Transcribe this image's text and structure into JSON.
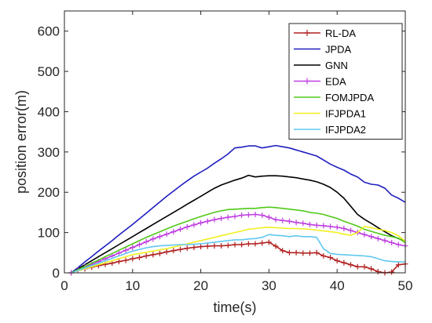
{
  "chart_data": {
    "type": "line",
    "xlabel": "time(s)",
    "ylabel": "position error(m)",
    "xlim": [
      0,
      50
    ],
    "ylim": [
      0,
      650
    ],
    "xticks": [
      0,
      10,
      20,
      30,
      40,
      50
    ],
    "yticks": [
      0,
      100,
      200,
      300,
      400,
      500,
      600
    ],
    "grid": false,
    "legend_position": "top-right",
    "series": [
      {
        "name": "RL-DA",
        "color": "#b22222",
        "marker": "plus",
        "x": [
          1,
          2,
          3,
          4,
          5,
          6,
          7,
          8,
          9,
          10,
          11,
          12,
          13,
          14,
          15,
          16,
          17,
          18,
          19,
          20,
          21,
          22,
          23,
          24,
          25,
          26,
          27,
          28,
          29,
          30,
          31,
          32,
          33,
          34,
          35,
          36,
          37,
          38,
          39,
          40,
          41,
          42,
          43,
          44,
          45,
          46,
          47,
          48,
          49,
          50
        ],
        "y": [
          0,
          6,
          10,
          14,
          18,
          21,
          24,
          28,
          31,
          35,
          38,
          42,
          45,
          48,
          52,
          55,
          58,
          61,
          63,
          65,
          66,
          67,
          67,
          68,
          70,
          70,
          72,
          72,
          74,
          76,
          66,
          55,
          50,
          50,
          49,
          49,
          50,
          42,
          38,
          30,
          25,
          20,
          15,
          15,
          10,
          3,
          0,
          2,
          20,
          22
        ]
      },
      {
        "name": "JPDA",
        "color": "#1f1fbf",
        "x": [
          1,
          2,
          3,
          4,
          5,
          6,
          7,
          8,
          9,
          10,
          11,
          12,
          13,
          14,
          15,
          16,
          17,
          18,
          19,
          20,
          21,
          22,
          23,
          24,
          25,
          26,
          27,
          28,
          29,
          30,
          31,
          32,
          33,
          34,
          35,
          36,
          37,
          38,
          39,
          40,
          41,
          42,
          43,
          44,
          45,
          46,
          47,
          48,
          49,
          50
        ],
        "y": [
          0,
          13,
          27,
          40,
          54,
          67,
          80,
          94,
          107,
          120,
          134,
          148,
          162,
          176,
          190,
          203,
          216,
          228,
          240,
          250,
          260,
          272,
          283,
          295,
          310,
          312,
          315,
          315,
          310,
          313,
          316,
          313,
          310,
          305,
          300,
          295,
          290,
          280,
          270,
          262,
          255,
          245,
          238,
          225,
          220,
          218,
          210,
          193,
          185,
          175
        ]
      },
      {
        "name": "GNN",
        "color": "#000000",
        "x": [
          1,
          2,
          3,
          4,
          5,
          6,
          7,
          8,
          9,
          10,
          11,
          12,
          13,
          14,
          15,
          16,
          17,
          18,
          19,
          20,
          21,
          22,
          23,
          24,
          25,
          26,
          27,
          28,
          29,
          30,
          31,
          32,
          33,
          34,
          35,
          36,
          37,
          38,
          39,
          40,
          41,
          42,
          43,
          44,
          45,
          46,
          47,
          48,
          49,
          50
        ],
        "y": [
          0,
          10,
          20,
          30,
          40,
          50,
          60,
          70,
          80,
          90,
          100,
          110,
          120,
          130,
          140,
          150,
          160,
          170,
          180,
          190,
          200,
          210,
          218,
          224,
          230,
          235,
          242,
          238,
          240,
          241,
          241,
          240,
          238,
          236,
          233,
          230,
          226,
          220,
          212,
          200,
          185,
          165,
          145,
          133,
          123,
          112,
          102,
          92,
          85,
          78
        ]
      },
      {
        "name": "EDA",
        "color": "#c040e0",
        "marker": "plus",
        "x": [
          1,
          2,
          3,
          4,
          5,
          6,
          7,
          8,
          9,
          10,
          11,
          12,
          13,
          14,
          15,
          16,
          17,
          18,
          19,
          20,
          21,
          22,
          23,
          24,
          25,
          26,
          27,
          28,
          29,
          30,
          31,
          32,
          33,
          34,
          35,
          36,
          37,
          38,
          39,
          40,
          41,
          42,
          43,
          44,
          45,
          46,
          47,
          48,
          49,
          50
        ],
        "y": [
          0,
          7,
          14,
          21,
          28,
          35,
          42,
          49,
          56,
          63,
          70,
          77,
          84,
          90,
          96,
          102,
          108,
          114,
          119,
          124,
          128,
          132,
          135,
          138,
          140,
          143,
          144,
          145,
          143,
          138,
          132,
          130,
          128,
          125,
          123,
          120,
          118,
          117,
          115,
          113,
          110,
          105,
          100,
          95,
          90,
          85,
          80,
          75,
          70,
          67
        ]
      },
      {
        "name": "FOMJPDA",
        "color": "#50c818",
        "x": [
          1,
          2,
          3,
          4,
          5,
          6,
          7,
          8,
          9,
          10,
          11,
          12,
          13,
          14,
          15,
          16,
          17,
          18,
          19,
          20,
          21,
          22,
          23,
          24,
          25,
          26,
          27,
          28,
          29,
          30,
          31,
          32,
          33,
          34,
          35,
          36,
          37,
          38,
          39,
          40,
          41,
          42,
          43,
          44,
          45,
          46,
          47,
          48,
          49,
          50
        ],
        "y": [
          0,
          8,
          16,
          24,
          32,
          40,
          48,
          56,
          64,
          72,
          80,
          88,
          95,
          102,
          109,
          116,
          122,
          128,
          134,
          140,
          145,
          150,
          154,
          157,
          158,
          159,
          160,
          160,
          162,
          163,
          162,
          160,
          158,
          156,
          154,
          150,
          148,
          145,
          140,
          135,
          128,
          122,
          116,
          108,
          103,
          98,
          93,
          90,
          86,
          75
        ]
      },
      {
        "name": "IFJPDA1",
        "color": "#f0f020",
        "x": [
          1,
          2,
          3,
          4,
          5,
          6,
          7,
          8,
          9,
          10,
          11,
          12,
          13,
          14,
          15,
          16,
          17,
          18,
          19,
          20,
          21,
          22,
          23,
          24,
          25,
          26,
          27,
          28,
          29,
          30,
          31,
          32,
          33,
          34,
          35,
          36,
          37,
          38,
          39,
          40,
          41,
          42,
          43,
          44,
          45,
          46,
          47,
          48,
          49,
          50
        ],
        "y": [
          0,
          5,
          10,
          15,
          20,
          25,
          30,
          35,
          40,
          45,
          48,
          51,
          54,
          57,
          60,
          64,
          68,
          72,
          76,
          80,
          84,
          88,
          92,
          96,
          100,
          104,
          108,
          110,
          112,
          113,
          112,
          111,
          110,
          110,
          109,
          108,
          106,
          104,
          102,
          100,
          96,
          93,
          100,
          115,
          112,
          108,
          105,
          100,
          92,
          78
        ]
      },
      {
        "name": "IFJPDA2",
        "color": "#60c8f0",
        "x": [
          1,
          2,
          3,
          4,
          5,
          6,
          7,
          8,
          9,
          10,
          11,
          12,
          13,
          14,
          15,
          16,
          17,
          18,
          19,
          20,
          21,
          22,
          23,
          24,
          25,
          26,
          27,
          28,
          29,
          30,
          31,
          32,
          33,
          34,
          35,
          36,
          37,
          38,
          39,
          40,
          41,
          42,
          43,
          44,
          45,
          46,
          47,
          48,
          49,
          50
        ],
        "y": [
          0,
          6,
          12,
          18,
          24,
          30,
          36,
          42,
          48,
          54,
          58,
          62,
          65,
          67,
          68,
          69,
          70,
          70,
          71,
          72,
          74,
          76,
          78,
          80,
          82,
          82,
          84,
          85,
          88,
          95,
          93,
          92,
          90,
          92,
          90,
          90,
          88,
          60,
          48,
          46,
          45,
          44,
          43,
          42,
          40,
          35,
          30,
          28,
          27,
          27
        ]
      }
    ]
  }
}
